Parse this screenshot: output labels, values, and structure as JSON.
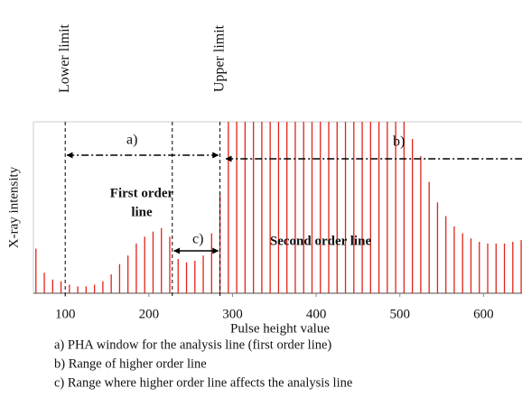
{
  "chart_data": {
    "type": "bar",
    "ylabel": "X-ray intensity",
    "xlabel": "Pulse height value",
    "xlim": [
      62,
      646
    ],
    "xticks": [
      100,
      200,
      300,
      400,
      500,
      600
    ],
    "ylim": [
      0,
      100
    ],
    "color": "#e2231a",
    "x": [
      65,
      75,
      85,
      95,
      105,
      115,
      125,
      135,
      145,
      155,
      165,
      175,
      185,
      195,
      205,
      215,
      225,
      235,
      245,
      255,
      265,
      275,
      285,
      295,
      305,
      315,
      325,
      335,
      345,
      355,
      365,
      375,
      385,
      395,
      405,
      415,
      425,
      435,
      445,
      455,
      465,
      475,
      485,
      495,
      505,
      515,
      525,
      535,
      545,
      555,
      565,
      575,
      585,
      595,
      605,
      615,
      625,
      635,
      645
    ],
    "values": [
      26,
      12,
      8,
      7,
      5,
      4,
      4,
      5,
      7,
      11,
      17,
      22,
      29,
      33,
      36,
      38,
      33,
      20,
      18,
      19,
      22,
      35,
      58,
      100,
      100,
      100,
      100,
      100,
      100,
      100,
      100,
      100,
      100,
      100,
      100,
      100,
      100,
      100,
      100,
      100,
      100,
      100,
      100,
      100,
      100,
      90,
      80,
      65,
      53,
      45,
      39,
      35,
      32,
      30,
      29,
      29,
      29,
      30,
      31
    ],
    "vlines": [
      {
        "value": 100,
        "label": "Lower limit"
      },
      {
        "value": 228
      },
      {
        "value": 285,
        "label": "Upper limit"
      }
    ],
    "ranges": [
      {
        "label": "a)",
        "from": 100,
        "to": 285
      },
      {
        "label": "b)",
        "from": 290
      },
      {
        "label": "c)",
        "from": 228,
        "to": 285
      }
    ],
    "region_labels": [
      "First order",
      "line",
      "Second order line"
    ],
    "notes": [
      "a) PHA window for the analysis line (first order line)",
      "b) Range of higher order line",
      "c) Range where higher order line affects the analysis line"
    ]
  }
}
